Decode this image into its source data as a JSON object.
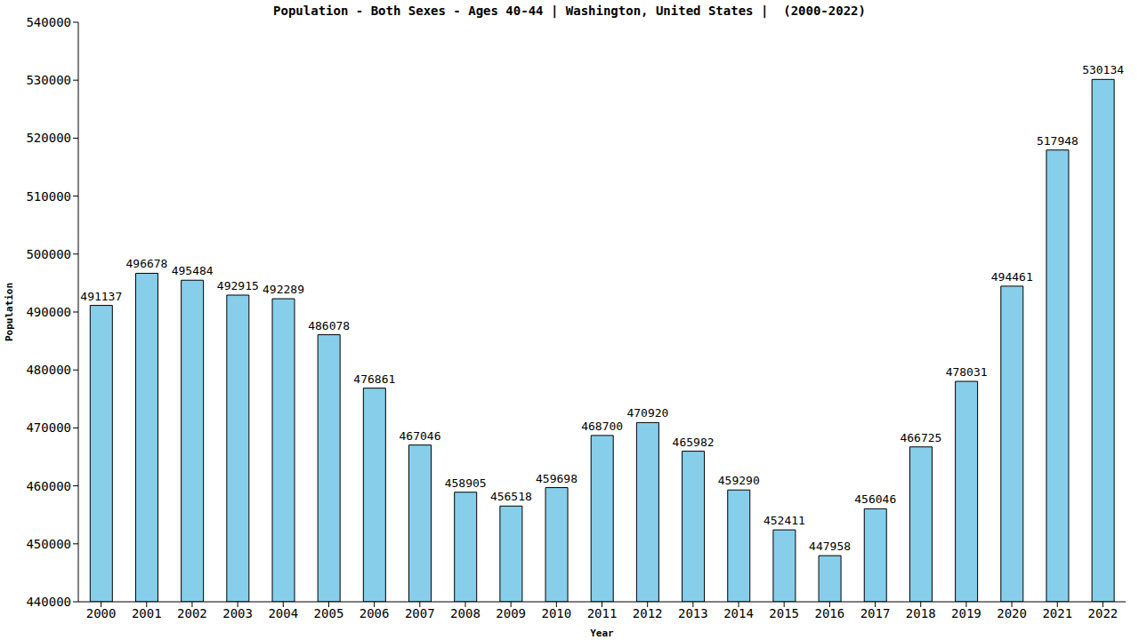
{
  "chart_data": {
    "type": "bar",
    "title": "Population - Both Sexes - Ages 40-44 | Washington, United States |  (2000-2022)",
    "x_label": "Year",
    "y_label": "Population",
    "categories": [
      "2000",
      "2001",
      "2002",
      "2003",
      "2004",
      "2005",
      "2006",
      "2007",
      "2008",
      "2009",
      "2010",
      "2011",
      "2012",
      "2013",
      "2014",
      "2015",
      "2016",
      "2017",
      "2018",
      "2019",
      "2020",
      "2021",
      "2022"
    ],
    "values": [
      491137,
      496678,
      495484,
      492915,
      492289,
      486078,
      476861,
      467046,
      458905,
      456518,
      459698,
      468700,
      470920,
      465982,
      459290,
      452411,
      447958,
      456046,
      466725,
      478031,
      494461,
      517948,
      530134
    ],
    "color": "#87ceeb",
    "ylim": [
      440000,
      540000
    ],
    "yticks": [
      440000,
      450000,
      460000,
      470000,
      480000,
      490000,
      500000,
      510000,
      520000,
      530000,
      540000
    ],
    "grid": false,
    "data_labels": true
  }
}
